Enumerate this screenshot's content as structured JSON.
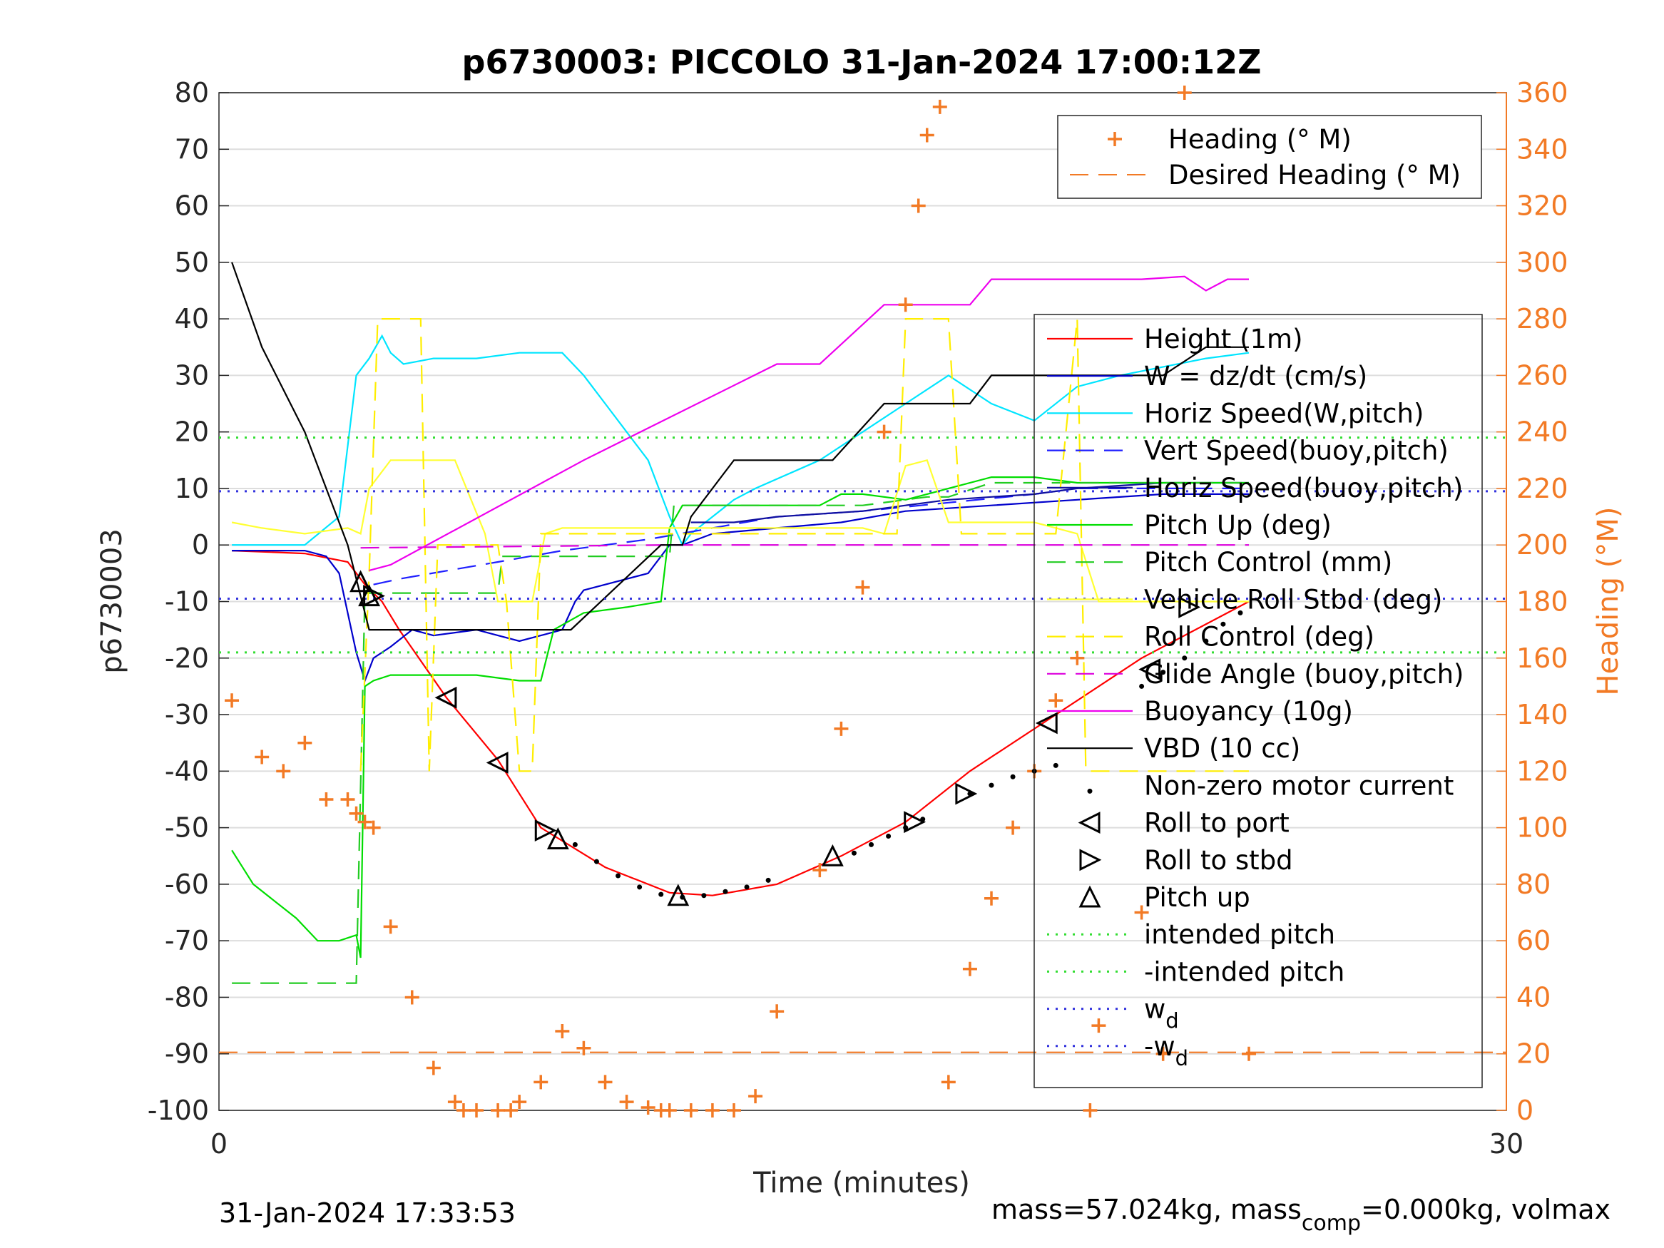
{
  "chart_data": {
    "type": "line",
    "title": "p6730003: PICCOLO 31-Jan-2024 17:00:12Z",
    "xlabel": "Time (minutes)",
    "ylabel": "p6730003",
    "ylabel_right": "Heading (°M)",
    "xlim": [
      0,
      30
    ],
    "ylim": [
      -100,
      80
    ],
    "ylim_right": [
      0,
      360
    ],
    "x_ticks": [
      "0",
      "30"
    ],
    "y_ticks": [
      "80",
      "70",
      "60",
      "50",
      "40",
      "30",
      "20",
      "10",
      "0",
      "-10",
      "-20",
      "-30",
      "-40",
      "-50",
      "-60",
      "-70",
      "-80",
      "-90",
      "-100"
    ],
    "y_ticks_right": [
      "360",
      "340",
      "320",
      "300",
      "280",
      "260",
      "240",
      "220",
      "200",
      "180",
      "160",
      "140",
      "120",
      "100",
      "80",
      "60",
      "40",
      "20",
      "0"
    ],
    "grid": "horizontal",
    "legend_top": {
      "placement": "top-right",
      "entries": [
        "Heading (° M)",
        "Desired Heading (° M)"
      ]
    },
    "legend_main": {
      "placement": "right",
      "entries": [
        "Height (1m)",
        "W = dz/dt (cm/s)",
        "Horiz Speed(W,pitch)",
        "Vert Speed(buoy,pitch)",
        "Horiz Speed(buoy,pitch)",
        "Pitch Up (deg)",
        "Pitch Control (mm)",
        "Vehicle Roll Stbd (deg)",
        "Roll Control (deg)",
        "Glide Angle (buoy,pitch)",
        "Buoyancy (10g)",
        "VBD (10 cc)",
        "Non-zero motor current",
        "Roll to port",
        "Roll to stbd",
        "Pitch up",
        "intended pitch",
        "-intended pitch",
        "w",
        "-w"
      ],
      "subscript": "d"
    },
    "footer_left": "31-Jan-2024 17:33:53",
    "footer_right_parts": [
      "mass=57.024kg, mass",
      "comp",
      "=0.000kg, volmax"
    ],
    "colors": {
      "height": "#ff0000",
      "w": "#0000cc",
      "horiz_w": "#00e5ff",
      "vert_buoy": "#1f1fff",
      "horiz_buoy": "#1010a0",
      "pitch": "#00dd00",
      "pitch_control": "#22cc22",
      "roll": "#ffff33",
      "roll_control": "#ffee00",
      "glide": "#dd00dd",
      "buoyancy": "#ee00ee",
      "vbd": "#000000",
      "heading": "#f27a25",
      "wd": "#3333dd",
      "intended": "#33dd33"
    },
    "series": [
      {
        "name": "Height (1m)",
        "key": "height",
        "style": "solid",
        "x": [
          0.3,
          2.0,
          3.0,
          3.4,
          3.8,
          4.2,
          5.3,
          6.5,
          7.5,
          9.0,
          10.5,
          11.5,
          13.0,
          14.5,
          16.0,
          17.5,
          19.5,
          21.5,
          23.5,
          24.0
        ],
        "y": [
          -1,
          -1.5,
          -3,
          -7,
          -10,
          -15,
          -27,
          -38,
          -50,
          -57,
          -61.5,
          -62,
          -60,
          -55,
          -49,
          -40,
          -30,
          -20,
          -12,
          -10
        ]
      },
      {
        "name": "W = dz/dt (cm/s)",
        "key": "w",
        "style": "solid",
        "x": [
          0.3,
          2.0,
          2.5,
          2.8,
          3.0,
          3.2,
          3.4,
          3.6,
          4.0,
          4.5,
          5.0,
          6.0,
          7.0,
          7.5,
          8.0,
          8.3,
          8.5,
          9.0,
          10.0,
          10.5,
          10.8,
          11.5,
          13.0,
          14.5,
          16.0,
          18.0,
          20.0,
          22.0,
          24.0
        ],
        "y": [
          -1,
          -1,
          -2,
          -5,
          -12,
          -19,
          -24,
          -20,
          -18,
          -15,
          -16,
          -15,
          -17,
          -16,
          -15,
          -10,
          -8,
          -7,
          -5,
          0,
          0,
          2,
          3,
          4,
          6,
          7,
          8,
          9,
          9
        ]
      },
      {
        "name": "Horiz Speed(W,pitch)",
        "key": "horiz_w",
        "style": "solid",
        "x": [
          0.3,
          2.0,
          2.8,
          3.2,
          3.5,
          3.8,
          4.0,
          4.3,
          5.0,
          6.0,
          7.0,
          8.0,
          8.5,
          9.0,
          9.5,
          10.0,
          10.5,
          10.8,
          11.0,
          11.5,
          12.0,
          12.5,
          14.0,
          15.0,
          16.0,
          17.0,
          18.0,
          19.0,
          20.0,
          21.0,
          23.0,
          24.0
        ],
        "y": [
          0,
          0,
          5,
          30,
          33,
          37,
          34,
          32,
          33,
          33,
          34,
          34,
          30,
          25,
          20,
          15,
          5,
          0,
          2,
          5,
          8,
          10,
          15,
          20,
          25,
          30,
          25,
          22,
          28,
          30,
          33,
          34
        ]
      },
      {
        "name": "Vert Speed(buoy,pitch)",
        "key": "vert_buoy",
        "style": "dashed",
        "x": [
          3.6,
          4.2,
          6.5,
          8.0,
          10.0,
          11.5,
          13.0,
          15.0,
          17.0,
          19.0,
          20.0,
          22.0,
          24.0
        ],
        "y": [
          -7,
          -6,
          -3,
          -1,
          1,
          3,
          5,
          6,
          7.5,
          9,
          10,
          10,
          10
        ]
      },
      {
        "name": "Horiz Speed(buoy,pitch)",
        "key": "horiz_buoy",
        "style": "solid",
        "x": [
          11.0,
          12.0,
          13.0,
          14.0,
          15.0,
          16.0,
          17.0,
          18.0,
          19.0,
          20.0,
          21.0,
          22.0,
          23.0,
          24.0
        ],
        "y": [
          4,
          4,
          5,
          5.5,
          6,
          7,
          8,
          8.5,
          9,
          10,
          10.5,
          11,
          11,
          11
        ]
      },
      {
        "name": "Pitch Up (deg)",
        "key": "pitch",
        "style": "solid",
        "x": [
          0.3,
          0.8,
          1.3,
          1.8,
          2.3,
          2.8,
          3.2,
          3.3,
          3.4,
          3.6,
          4.0,
          5.0,
          6.0,
          7.0,
          7.5,
          7.8,
          8.5,
          9.5,
          10.3,
          10.5,
          10.8,
          11.5,
          13.0,
          14.0,
          14.5,
          15.0,
          16.0,
          16.5,
          17.0,
          18.0,
          19.0,
          20.0,
          22.0,
          24.0
        ],
        "y": [
          -54,
          -60,
          -63,
          -66,
          -70,
          -70,
          -69,
          -73,
          -25,
          -24,
          -23,
          -23,
          -23,
          -24,
          -24,
          -15,
          -12,
          -11,
          -10,
          3,
          7,
          7,
          7,
          7,
          9,
          9,
          8,
          9,
          10,
          12,
          12,
          11,
          11,
          11
        ]
      },
      {
        "name": "Pitch Control (mm)",
        "key": "pitch_control",
        "style": "dashed",
        "x": [
          0.3,
          3.2,
          3.4,
          6.5,
          6.6,
          7.5,
          7.8,
          10.5,
          10.6,
          13.5,
          15.0,
          16.5,
          17.0,
          18.0,
          20.0,
          24.0
        ],
        "y": [
          -77.5,
          -77.5,
          -8.5,
          -8.5,
          -2,
          -2,
          -2,
          -2,
          7,
          7,
          7,
          8.5,
          8.5,
          11,
          11,
          11
        ]
      },
      {
        "name": "Vehicle Roll Stbd (deg)",
        "key": "roll",
        "style": "solid",
        "x": [
          0.3,
          1.0,
          2.0,
          3.0,
          3.3,
          3.5,
          4.0,
          5.0,
          5.5,
          6.2,
          6.5,
          7.0,
          7.3,
          7.6,
          8.0,
          10.0,
          12.0,
          14.0,
          15.0,
          15.5,
          16.0,
          16.5,
          17.0,
          19.0,
          19.5,
          20.0,
          20.5,
          21.0,
          24.0
        ],
        "y": [
          4,
          3,
          2,
          3,
          2,
          10,
          15,
          15,
          15,
          2,
          -10,
          -10,
          -10,
          2,
          3,
          3,
          3,
          3,
          3,
          2,
          14,
          15,
          4,
          4,
          3,
          2,
          -10,
          -10,
          -10
        ]
      },
      {
        "name": "Roll Control (deg)",
        "key": "roll_control",
        "style": "dashed",
        "x": [
          3.3,
          3.5,
          3.7,
          4.7,
          4.9,
          5.1,
          6.5,
          6.7,
          7.0,
          7.3,
          7.5,
          7.7,
          13.0,
          15.0,
          15.8,
          16.0,
          16.5,
          17.0,
          17.3,
          19.0,
          19.5,
          20.0,
          20.2,
          24.0
        ],
        "y": [
          -40,
          -5,
          40,
          40,
          -40,
          0,
          0,
          -10,
          -40,
          -40,
          2,
          2,
          2,
          2,
          2,
          40,
          40,
          40,
          2,
          2,
          2,
          40,
          -40,
          -40
        ]
      },
      {
        "name": "Glide Angle (buoy,pitch)",
        "key": "glide",
        "style": "dashed",
        "x": [
          3.3,
          10.5,
          24.0
        ],
        "y": [
          -0.5,
          0,
          0
        ]
      },
      {
        "name": "Buoyancy (10g)",
        "key": "buoyancy",
        "style": "solid",
        "x": [
          3.5,
          4.0,
          8.5,
          13.0,
          14.0,
          15.5,
          17.5,
          18.0,
          19.0,
          20.0,
          21.5,
          22.5,
          23.0,
          23.5,
          24.0
        ],
        "y": [
          -4.5,
          -3.5,
          15,
          32,
          32,
          42.5,
          42.5,
          47,
          47,
          47,
          47,
          47.5,
          45,
          47,
          47
        ]
      },
      {
        "name": "VBD (10 cc)",
        "key": "vbd",
        "style": "solid",
        "x": [
          0.3,
          1.0,
          2.0,
          3.0,
          3.5,
          3.8,
          8.0,
          8.2,
          10.3,
          10.8,
          11.0,
          12.0,
          13.0,
          14.3,
          15.5,
          16.5,
          17.5,
          18.0,
          19.0,
          20.0,
          21.0,
          22.0,
          23.0,
          24.0
        ],
        "y": [
          50,
          35,
          20,
          0,
          -15,
          -15,
          -15,
          -15,
          0,
          0,
          5,
          15,
          15,
          15,
          25,
          25,
          25,
          30,
          30,
          30,
          30,
          30,
          35,
          35
        ]
      },
      {
        "name": "Heading (° M)",
        "key": "heading",
        "axis": "right",
        "style": "markers",
        "x": [
          0.3,
          1.0,
          1.5,
          2.0,
          2.5,
          3.0,
          3.2,
          3.4,
          3.6,
          4.0,
          4.5,
          5.0,
          5.5,
          5.7,
          6.0,
          6.5,
          6.8,
          7.0,
          7.5,
          8.0,
          8.5,
          9.0,
          9.5,
          10.0,
          10.3,
          10.5,
          11.0,
          11.5,
          12.0,
          12.5,
          13.0,
          14.0,
          14.5,
          15.0,
          15.5,
          16.0,
          16.3,
          16.5,
          16.8,
          17.0,
          17.5,
          18.0,
          18.5,
          19.0,
          19.5,
          20.0,
          20.3,
          20.5,
          21.5,
          22.0,
          22.5,
          23.0,
          23.3,
          24.0
        ],
        "y": [
          145,
          125,
          120,
          130,
          110,
          110,
          105,
          102,
          100,
          65,
          40,
          15,
          3,
          0,
          0,
          0,
          0,
          3,
          10,
          28,
          22,
          10,
          3,
          1,
          0,
          0,
          0,
          0,
          0,
          5,
          35,
          85,
          135,
          185,
          240,
          285,
          320,
          345,
          355,
          10,
          50,
          75,
          100,
          120,
          145,
          160,
          0,
          30,
          70,
          20,
          360,
          345,
          340,
          20
        ]
      },
      {
        "name": "Desired Heading (° M)",
        "key": "heading_desired",
        "axis": "right",
        "style": "dashed",
        "x": [
          0,
          30
        ],
        "y": [
          20.5,
          20.5
        ]
      },
      {
        "name": "intended pitch",
        "key": "intended",
        "style": "dotted",
        "x": [
          0,
          30
        ],
        "y": [
          19,
          19
        ]
      },
      {
        "name": "-intended pitch",
        "key": "intended_neg",
        "style": "dotted",
        "x": [
          0,
          30
        ],
        "y": [
          -19,
          -19
        ]
      },
      {
        "name": "w_d",
        "key": "wd",
        "style": "dotted",
        "x": [
          0,
          30
        ],
        "y": [
          9.5,
          9.5
        ]
      },
      {
        "name": "-w_d",
        "key": "wd_neg",
        "style": "dotted",
        "x": [
          0,
          30
        ],
        "y": [
          -9.5,
          -9.5
        ]
      }
    ],
    "markers": {
      "motor_current": {
        "x": [
          8.3,
          8.8,
          9.3,
          9.8,
          10.3,
          10.8,
          11.3,
          11.8,
          12.3,
          12.8,
          14.8,
          15.2,
          15.6,
          16.0,
          16.4,
          17.5,
          18.0,
          18.5,
          19.0,
          19.5,
          21.5,
          22.0,
          22.5,
          23.0,
          23.4,
          23.8
        ],
        "y": [
          -53,
          -56,
          -58.5,
          -60.5,
          -61.8,
          -62.3,
          -62,
          -61.3,
          -60.5,
          -59.3,
          -54.5,
          -53,
          -51.5,
          -50,
          -48.5,
          -44,
          -42.5,
          -41,
          -40,
          -39,
          -25,
          -22.5,
          -20,
          -17,
          -14,
          -12
        ]
      },
      "roll_to_port": {
        "x": [
          5.3,
          6.5,
          19.3,
          21.7
        ],
        "y": [
          -27,
          -38.5,
          -31.5,
          -22
        ]
      },
      "roll_to_stbd": {
        "x": [
          3.6,
          7.6,
          16.2,
          17.4,
          22.6
        ],
        "y": [
          -9,
          -50.5,
          -49,
          -44,
          -11
        ]
      },
      "pitch_up": {
        "x": [
          3.3,
          3.5,
          7.9,
          10.7,
          14.3
        ],
        "y": [
          -6.5,
          -9,
          -52,
          -62,
          -55
        ]
      }
    }
  }
}
